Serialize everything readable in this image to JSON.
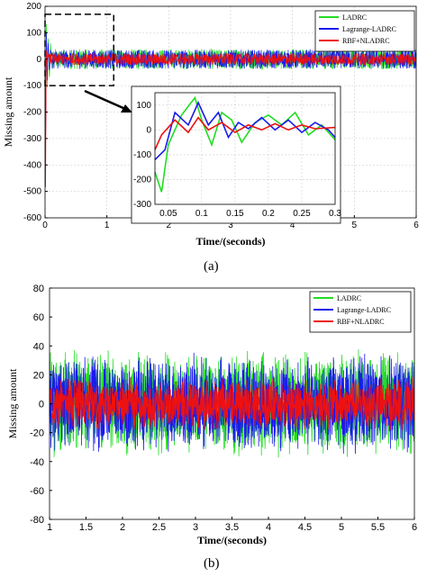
{
  "figure": {
    "panel_a_label": "(a)",
    "panel_b_label": "(b)"
  },
  "colors": {
    "LADRC": "#22dd22",
    "Lagrange-LADRC": "#1a1aee",
    "RBF+NLADRC": "#ee1111"
  },
  "chart_data": [
    {
      "type": "line",
      "panel": "a",
      "xlabel": "Time/(seconds)",
      "ylabel": "Missing amount",
      "xlim": [
        0,
        6
      ],
      "ylim": [
        -600,
        200
      ],
      "xticks": [
        0,
        1,
        2,
        3,
        4,
        5,
        6
      ],
      "yticks": [
        -600,
        -500,
        -400,
        -300,
        -200,
        -100,
        0,
        100,
        200
      ],
      "grid": true,
      "legend": "top-right",
      "series": [
        {
          "name": "LADRC",
          "color": "#22dd22",
          "steady_amplitude": 38,
          "transient": {
            "t": [
              0,
              0.01,
              0.02,
              0.035,
              0.05,
              0.07,
              0.09,
              0.11,
              0.13,
              0.15
            ],
            "y": [
              0,
              -200,
              160,
              -120,
              90,
              -80,
              60,
              -40,
              30,
              10
            ]
          }
        },
        {
          "name": "Lagrange-LADRC",
          "color": "#1a1aee",
          "steady_amplitude": 36,
          "transient": {
            "t": [
              0,
              0.01,
              0.02,
              0.035,
              0.05,
              0.07,
              0.09,
              0.11
            ],
            "y": [
              0,
              -350,
              120,
              -90,
              70,
              -50,
              35,
              10
            ]
          }
        },
        {
          "name": "RBF+NLADRC",
          "color": "#ee1111",
          "steady_amplitude": 22,
          "transient": {
            "t": [
              0,
              0.008,
              0.02,
              0.035,
              0.05,
              0.07
            ],
            "y": [
              0,
              -510,
              40,
              -30,
              20,
              5
            ]
          }
        }
      ],
      "inset": {
        "xlim": [
          0.03,
          0.3
        ],
        "ylim": [
          -300,
          150
        ],
        "xticks": [
          0.05,
          0.1,
          0.15,
          0.2,
          0.25,
          0.3
        ],
        "yticks": [
          -300,
          -200,
          -100,
          0,
          100
        ],
        "zoom_box": {
          "x": [
            0,
            0.3
          ],
          "y": [
            -100,
            170
          ]
        }
      }
    },
    {
      "type": "line",
      "panel": "b",
      "xlabel": "Time/(seconds)",
      "ylabel": "Missing amount",
      "xlim": [
        1,
        6
      ],
      "ylim": [
        -80,
        80
      ],
      "xticks": [
        1,
        1.5,
        2,
        2.5,
        3,
        3.5,
        4,
        4.5,
        5,
        5.5,
        6
      ],
      "yticks": [
        -80,
        -60,
        -40,
        -20,
        0,
        20,
        40,
        60,
        80
      ],
      "grid": false,
      "legend": "top-right",
      "series": [
        {
          "name": "LADRC",
          "color": "#22dd22",
          "range": [
            -38,
            38
          ]
        },
        {
          "name": "Lagrange-LADRC",
          "color": "#1a1aee",
          "range": [
            -35,
            36
          ]
        },
        {
          "name": "RBF+NLADRC",
          "color": "#ee1111",
          "range": [
            -18,
            20
          ]
        }
      ]
    }
  ]
}
